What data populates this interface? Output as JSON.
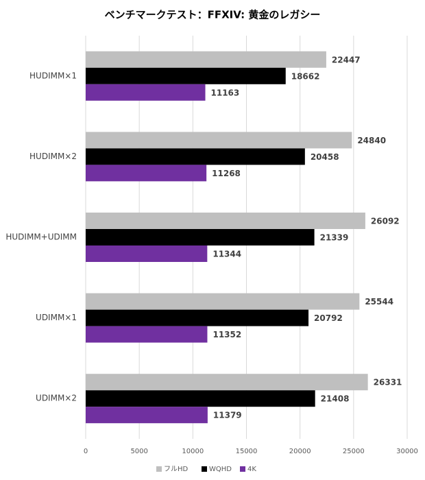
{
  "chart_data": {
    "type": "hbar",
    "title": "ベンチマークテスト：FFXIV: 黄金のレガシー",
    "categories": [
      "HUDIMM×1",
      "HUDIMM×2",
      "HUDIMM+UDIMM",
      "UDIMM×1",
      "UDIMM×2"
    ],
    "series": [
      {
        "name": "フルHD",
        "color": "#bfbfbf",
        "values": [
          22447,
          24840,
          26092,
          25544,
          26331
        ]
      },
      {
        "name": "WQHD",
        "color": "#000000",
        "values": [
          18662,
          20458,
          21339,
          20792,
          21408
        ]
      },
      {
        "name": "4K",
        "color": "#7030a0",
        "values": [
          11163,
          11268,
          11344,
          11352,
          11379
        ]
      }
    ],
    "xlim": [
      0,
      30000
    ],
    "xticks": [
      0,
      5000,
      10000,
      15000,
      20000,
      25000,
      30000
    ],
    "grid": true,
    "legend": "bottom"
  }
}
